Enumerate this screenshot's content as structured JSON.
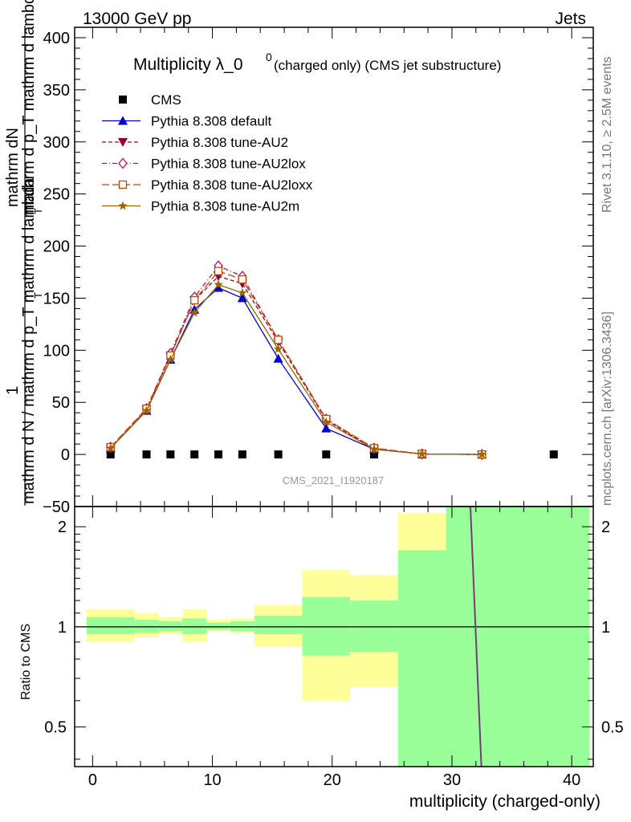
{
  "header": {
    "left": "13000 GeV pp",
    "right": "Jets"
  },
  "side_labels": {
    "rivet": "Rivet 3.1.10, ≥ 2.5M events",
    "mcplots": "mcplots.cern.ch [arXiv:1306.3436]"
  },
  "title": {
    "main": "Multiplicity λ_0",
    "sup": "0",
    "sub": "(charged only) (CMS jet substructure)"
  },
  "watermark": "CMS_2021_I1920187",
  "ylabel_top_num": "mathrm dN",
  "ylabel_top_den": "mathrm d p_T mathrm d lambda",
  "ylabel_top_sub": "T",
  "ylabel_bottom": "mathrm d N / mathrm d p_T mathrm d lambda",
  "ylabel_bottom_sub": "T",
  "ylabel_one": "1",
  "ratio_ylabel": "Ratio to CMS",
  "xlabel": "multiplicity (charged-only)",
  "chart_data": [
    {
      "type": "line",
      "title": "Multiplicity λ_0^0 (charged only) (CMS jet substructure)",
      "xlabel": "multiplicity (charged-only)",
      "ylabel": "1/(mathrm d N / mathrm d p_T) mathrm d^2N / mathrm d p_T mathrm d lambda",
      "xlim": [
        -1.5,
        41.8
      ],
      "ylim": [
        -50,
        410
      ],
      "xticks": [
        0,
        10,
        20,
        30,
        40
      ],
      "yticks": [
        -50,
        0,
        50,
        100,
        150,
        200,
        250,
        300,
        350,
        400
      ],
      "legend_position": "top-left",
      "series": [
        {
          "name": "CMS",
          "color": "#000000",
          "marker": "square",
          "x": [
            1.5,
            4.5,
            6.5,
            8.5,
            10.5,
            12.5,
            15.5,
            19.5,
            23.5,
            27.5,
            32.5,
            38.5
          ],
          "y": [
            0,
            0,
            0,
            0,
            0,
            0,
            0,
            0,
            0,
            0,
            0,
            0
          ]
        },
        {
          "name": "Pythia 8.308 default",
          "color": "#0000cc",
          "marker": "triangle-up",
          "dash": "solid",
          "x": [
            1.5,
            4.5,
            6.5,
            8.5,
            10.5,
            12.5,
            15.5,
            19.5,
            23.5,
            27.5,
            32.5
          ],
          "y": [
            6,
            42,
            91,
            139,
            160,
            150,
            92,
            25,
            5,
            0.5,
            0
          ]
        },
        {
          "name": "Pythia 8.308 tune-AU2",
          "color": "#990033",
          "marker": "triangle-down",
          "dash": "dashed",
          "x": [
            1.5,
            4.5,
            6.5,
            8.5,
            10.5,
            12.5,
            15.5,
            19.5,
            23.5,
            27.5,
            32.5
          ],
          "y": [
            6,
            43,
            95,
            148,
            171,
            164,
            108,
            33,
            5,
            0.5,
            0
          ]
        },
        {
          "name": "Pythia 8.308 tune-AU2lox",
          "color": "#bb1155",
          "marker": "diamond-open",
          "dash": "dashdot",
          "x": [
            1.5,
            4.5,
            6.5,
            8.5,
            10.5,
            12.5,
            15.5,
            19.5,
            23.5,
            27.5,
            32.5
          ],
          "y": [
            7,
            44,
            97,
            151,
            181,
            171,
            110,
            34,
            6,
            0.5,
            0
          ]
        },
        {
          "name": "Pythia 8.308 tune-AU2loxx",
          "color": "#cc4400",
          "marker": "square-open",
          "dash": "longdash",
          "x": [
            1.5,
            4.5,
            6.5,
            8.5,
            10.5,
            12.5,
            15.5,
            19.5,
            23.5,
            27.5,
            32.5
          ],
          "y": [
            7,
            44,
            95,
            148,
            176,
            168,
            110,
            34,
            6,
            0.5,
            0
          ]
        },
        {
          "name": "Pythia 8.308 tune-AU2m",
          "color": "#996600",
          "marker": "star",
          "dash": "solid",
          "x": [
            1.5,
            4.5,
            6.5,
            8.5,
            10.5,
            12.5,
            15.5,
            19.5,
            23.5,
            27.5,
            32.5
          ],
          "y": [
            6,
            42,
            91,
            136,
            163,
            155,
            101,
            31,
            5,
            0.5,
            0
          ]
        }
      ]
    },
    {
      "type": "area",
      "ylabel": "Ratio to CMS",
      "ylim": [
        0.38,
        2.3
      ],
      "log_y": true,
      "yticks": [
        0.5,
        1,
        2
      ],
      "bands": [
        {
          "x_low": -0.5,
          "x_high": 3.5,
          "inner": [
            0.95,
            1.07
          ],
          "outer": [
            0.9,
            1.13
          ]
        },
        {
          "x_low": 3.5,
          "x_high": 5.5,
          "inner": [
            0.96,
            1.05
          ],
          "outer": [
            0.93,
            1.1
          ]
        },
        {
          "x_low": 5.5,
          "x_high": 7.5,
          "inner": [
            0.97,
            1.04
          ],
          "outer": [
            0.95,
            1.07
          ]
        },
        {
          "x_low": 7.5,
          "x_high": 9.5,
          "inner": [
            0.95,
            1.06
          ],
          "outer": [
            0.9,
            1.13
          ]
        },
        {
          "x_low": 9.5,
          "x_high": 11.5,
          "inner": [
            0.98,
            1.03
          ],
          "outer": [
            0.97,
            1.05
          ]
        },
        {
          "x_low": 11.5,
          "x_high": 13.5,
          "inner": [
            0.97,
            1.04
          ],
          "outer": [
            0.96,
            1.06
          ]
        },
        {
          "x_low": 13.5,
          "x_high": 17.5,
          "inner": [
            0.95,
            1.08
          ],
          "outer": [
            0.87,
            1.16
          ]
        },
        {
          "x_low": 17.5,
          "x_high": 21.5,
          "inner": [
            0.82,
            1.23
          ],
          "outer": [
            0.6,
            1.48
          ]
        },
        {
          "x_low": 21.5,
          "x_high": 25.5,
          "inner": [
            0.84,
            1.2
          ],
          "outer": [
            0.66,
            1.43
          ]
        },
        {
          "x_low": 25.5,
          "x_high": 29.5,
          "inner": [
            0.35,
            1.7
          ],
          "outer": [
            0.35,
            2.2
          ]
        },
        {
          "x_low": 29.5,
          "x_high": 41.5,
          "inner": [
            0.35,
            2.5
          ],
          "outer": [
            0.35,
            2.5
          ]
        }
      ],
      "ratio_line": {
        "x": [
          31.5,
          32.5
        ],
        "y": [
          2.5,
          0.35
        ],
        "color": "#7a3a7a"
      }
    }
  ]
}
